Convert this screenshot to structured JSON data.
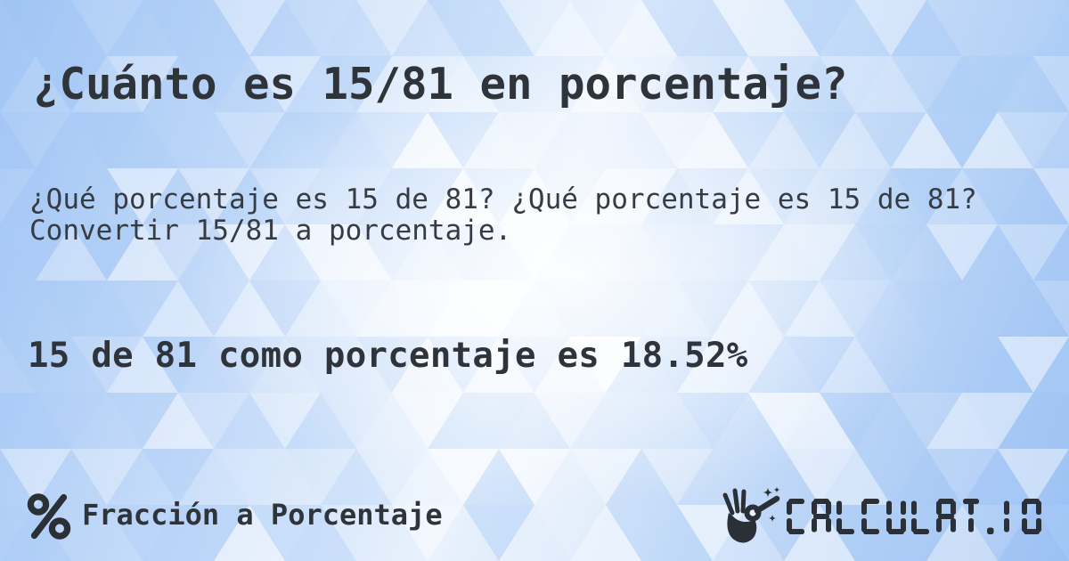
{
  "card": {
    "title": "¿Cuánto es 15/81 en porcentaje?",
    "description": "¿Qué porcentaje es 15 de 81? ¿Qué porcentaje es 15 de 81? Convertir 15/81 a porcentaje.",
    "result": "15 de 81 como porcentaje es 18.52%",
    "footer": {
      "category_icon": "percent-icon",
      "category_label": "Fracción a Porcentaje",
      "brand": {
        "logo_icon": "hand-magic-wand-icon",
        "logo_text": "CALCULAT.IO"
      }
    },
    "colors": {
      "text_dark": "#2f343b",
      "text_body": "#363c44",
      "background_blue": "#9ec3f4",
      "background_light": "#e9f2fd",
      "pattern_triangle_blue": "#a9cbf7",
      "pattern_triangle_white": "#ffffff",
      "icon_dark": "#2b2f36"
    }
  }
}
